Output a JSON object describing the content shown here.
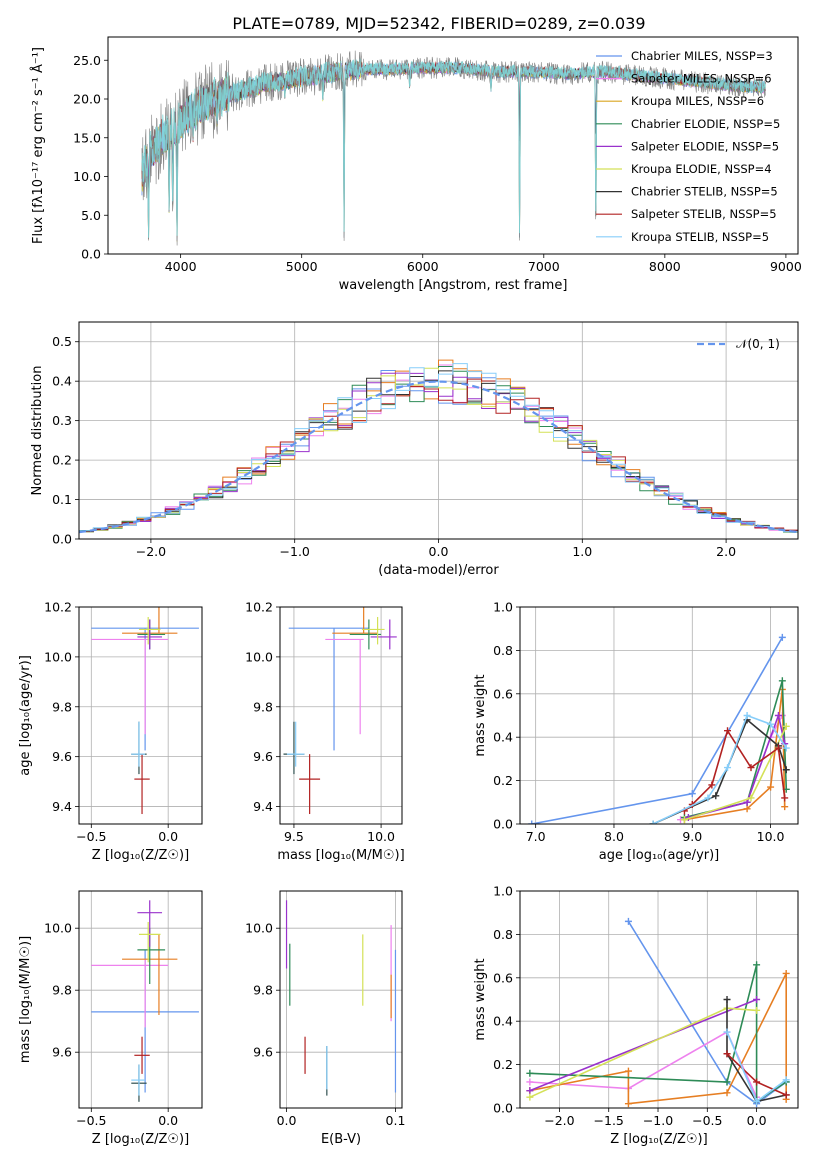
{
  "chart_data": [
    {
      "id": "spectrum",
      "type": "line",
      "title": "PLATE=0789, MJD=52342, FIBERID=0289, z=0.039",
      "xlabel": "wavelength [Angstrom, rest frame]",
      "ylabel": "Flux [fλ10⁻¹⁷ erg cm⁻² s⁻¹ Å⁻¹]",
      "xlim": [
        3400,
        9100
      ],
      "ylim": [
        0,
        28
      ],
      "xticks": [
        4000,
        5000,
        6000,
        7000,
        8000,
        9000
      ],
      "yticks": [
        0,
        5,
        10,
        15,
        20,
        25
      ],
      "grid": false,
      "legend_position": "top-right",
      "legend": [
        {
          "label": "Chabrier MILES, NSSP=3",
          "color": "#6495ed"
        },
        {
          "label": "Salpeter MILES, NSSP=6",
          "color": "#ee82ee"
        },
        {
          "label": "Kroupa MILES, NSSP=6",
          "color": "#daa520"
        },
        {
          "label": "Chabrier ELODIE, NSSP=5",
          "color": "#2e8b57"
        },
        {
          "label": "Salpeter ELODIE, NSSP=5",
          "color": "#9932cc"
        },
        {
          "label": "Kroupa ELODIE, NSSP=4",
          "color": "#d4e157"
        },
        {
          "label": "Chabrier STELIB, NSSP=5",
          "color": "#333333"
        },
        {
          "label": "Salpeter STELIB, NSSP=5",
          "color": "#b22222"
        },
        {
          "label": "Kroupa STELIB, NSSP=5",
          "color": "#87cefa"
        }
      ],
      "data_line": {
        "color": "#808080",
        "x_range": [
          3680,
          8830
        ]
      },
      "continuum": {
        "x": [
          3680,
          3750,
          3850,
          3950,
          4050,
          4200,
          4350,
          4500,
          4700,
          4900,
          5100,
          5300,
          5500,
          5700,
          6000,
          6300,
          6600,
          6900,
          7200,
          7500,
          7800,
          8100,
          8400,
          8700,
          8830
        ],
        "y": [
          10,
          13,
          15,
          16,
          18,
          19.5,
          20.5,
          21,
          22,
          22.5,
          23,
          23.5,
          23.8,
          23.8,
          24,
          24,
          23.5,
          23.5,
          23.2,
          23.5,
          23,
          22.5,
          22,
          21.5,
          21.5
        ]
      },
      "dips": [
        {
          "x": 3735,
          "y": 1.5
        },
        {
          "x": 3905,
          "y": 4.2
        },
        {
          "x": 3935,
          "y": 4.5
        },
        {
          "x": 3970,
          "y": 0
        },
        {
          "x": 4102,
          "y": 14
        },
        {
          "x": 4300,
          "y": 15.5
        },
        {
          "x": 4861,
          "y": 20
        },
        {
          "x": 5175,
          "y": 19
        },
        {
          "x": 5350,
          "y": 1.5
        },
        {
          "x": 5892,
          "y": 21
        },
        {
          "x": 6563,
          "y": 20.5
        },
        {
          "x": 6800,
          "y": 0
        },
        {
          "x": 7430,
          "y": 0
        }
      ]
    },
    {
      "id": "residuals",
      "type": "line",
      "xlabel": "(data-model)/error",
      "ylabel": "Normed distribution",
      "xlim": [
        -2.5,
        2.5
      ],
      "ylim": [
        0,
        0.55
      ],
      "xticks": [
        -2,
        -1,
        0,
        1,
        2
      ],
      "yticks": [
        0.0,
        0.1,
        0.2,
        0.3,
        0.4,
        0.5
      ],
      "grid": true,
      "legend_position": "top-right",
      "legend": [
        {
          "label": "𝒩(0, 1)",
          "color": "#6495ed"
        }
      ],
      "gaussian": {
        "mean": 0,
        "sigma": 1
      }
    },
    {
      "id": "age-vs-z",
      "type": "scatter",
      "xlabel": "Z [log₁₀(Z/Z☉)]",
      "ylabel": "age  [log₁₀(age/yr)]",
      "xlim": [
        -0.58,
        0.22
      ],
      "ylim": [
        9.33,
        10.2
      ],
      "xticks": [
        -0.5,
        0.0
      ],
      "yticks": [
        9.4,
        9.6,
        9.8,
        10.0,
        10.2
      ],
      "grid": true,
      "points": [
        {
          "x": -0.15,
          "xerr": [
            0.35,
            0.35
          ],
          "y": 10.115,
          "yerr": [
            0.49,
            0.0
          ],
          "color": "#6495ed"
        },
        {
          "x": -0.15,
          "xerr": [
            0.35,
            0.15
          ],
          "y": 10.07,
          "yerr": [
            0.38,
            0.0
          ],
          "color": "#ee82ee"
        },
        {
          "x": -0.06,
          "xerr": [
            0.24,
            0.12
          ],
          "y": 10.095,
          "yerr": [
            0.0,
            0.17
          ],
          "color": "#e67e22"
        },
        {
          "x": -0.12,
          "xerr": [
            0.08,
            0.1
          ],
          "y": 10.09,
          "yerr": [
            0.06,
            0.06
          ],
          "color": "#2e8b57"
        },
        {
          "x": -0.12,
          "xerr": [
            0.08,
            0.08
          ],
          "y": 10.08,
          "yerr": [
            0.05,
            0.07
          ],
          "color": "#9932cc"
        },
        {
          "x": -0.13,
          "xerr": [
            0.06,
            0.08
          ],
          "y": 10.11,
          "yerr": [
            0.06,
            0.05
          ],
          "color": "#d4e157"
        },
        {
          "x": -0.19,
          "xerr": [
            0.05,
            0.05
          ],
          "y": 9.61,
          "yerr": [
            0.08,
            0.13
          ],
          "color": "#2f4f4f"
        },
        {
          "x": -0.17,
          "xerr": [
            0.05,
            0.05
          ],
          "y": 9.51,
          "yerr": [
            0.14,
            0.1
          ],
          "color": "#b22222"
        },
        {
          "x": -0.19,
          "xerr": [
            0.05,
            0.04
          ],
          "y": 9.61,
          "yerr": [
            0.05,
            0.13
          ],
          "color": "#87cefa"
        }
      ]
    },
    {
      "id": "age-vs-mass",
      "type": "scatter",
      "xlabel": "mass [log₁₀(M/M☉)]",
      "ylabel": "",
      "xlim": [
        9.42,
        10.12
      ],
      "ylim": [
        9.33,
        10.2
      ],
      "xticks": [
        9.5,
        10.0
      ],
      "yticks": [
        9.4,
        9.6,
        9.8,
        10.0,
        10.2
      ],
      "grid": true,
      "points": [
        {
          "x": 9.73,
          "xerr": [
            0.26,
            0.2
          ],
          "y": 10.115,
          "yerr": [
            0.49,
            0.0
          ],
          "color": "#6495ed"
        },
        {
          "x": 9.88,
          "xerr": [
            0.2,
            0.02
          ],
          "y": 10.07,
          "yerr": [
            0.38,
            0.0
          ],
          "color": "#ee82ee"
        },
        {
          "x": 9.9,
          "xerr": [
            0.18,
            0.08
          ],
          "y": 10.095,
          "yerr": [
            0.0,
            0.17
          ],
          "color": "#e67e22"
        },
        {
          "x": 9.93,
          "xerr": [
            0.11,
            0.07
          ],
          "y": 10.09,
          "yerr": [
            0.06,
            0.06
          ],
          "color": "#2e8b57"
        },
        {
          "x": 10.05,
          "xerr": [
            0.11,
            0.04
          ],
          "y": 10.08,
          "yerr": [
            0.05,
            0.07
          ],
          "color": "#9932cc"
        },
        {
          "x": 9.98,
          "xerr": [
            0.09,
            0.04
          ],
          "y": 10.11,
          "yerr": [
            0.06,
            0.05
          ],
          "color": "#d4e157"
        },
        {
          "x": 9.5,
          "xerr": [
            0.06,
            0.06
          ],
          "y": 9.61,
          "yerr": [
            0.08,
            0.13
          ],
          "color": "#2f4f4f"
        },
        {
          "x": 9.59,
          "xerr": [
            0.06,
            0.06
          ],
          "y": 9.51,
          "yerr": [
            0.14,
            0.1
          ],
          "color": "#b22222"
        },
        {
          "x": 9.51,
          "xerr": [
            0.05,
            0.05
          ],
          "y": 9.61,
          "yerr": [
            0.05,
            0.13
          ],
          "color": "#87cefa"
        }
      ]
    },
    {
      "id": "massweight-vs-age",
      "type": "line",
      "xlabel": "age  [log₁₀(age/yr)]",
      "ylabel": "mass weight",
      "xlim": [
        6.8,
        10.35
      ],
      "ylim": [
        0,
        1.0
      ],
      "xticks": [
        7,
        8,
        9,
        10
      ],
      "yticks": [
        0.0,
        0.2,
        0.4,
        0.6,
        0.8,
        1.0
      ],
      "grid": true,
      "series": [
        {
          "color": "#6495ed",
          "x": [
            6.95,
            9.0,
            10.15
          ],
          "y": [
            0.0,
            0.14,
            0.86
          ]
        },
        {
          "color": "#ee82ee",
          "x": [
            8.85,
            9.7,
            10.0,
            10.15
          ],
          "y": [
            0.02,
            0.1,
            0.4,
            0.5
          ]
        },
        {
          "color": "#e67e22",
          "x": [
            8.9,
            9.7,
            10.0,
            10.15,
            10.18
          ],
          "y": [
            0.02,
            0.07,
            0.17,
            0.62,
            0.08
          ]
        },
        {
          "color": "#2e8b57",
          "x": [
            8.9,
            9.7,
            10.15,
            10.2
          ],
          "y": [
            0.03,
            0.1,
            0.66,
            0.16
          ]
        },
        {
          "color": "#9932cc",
          "x": [
            8.95,
            9.7,
            10.1,
            10.18
          ],
          "y": [
            0.03,
            0.1,
            0.5,
            0.37
          ]
        },
        {
          "color": "#d4e157",
          "x": [
            8.9,
            9.75,
            10.2
          ],
          "y": [
            0.02,
            0.12,
            0.45
          ]
        },
        {
          "color": "#333333",
          "x": [
            8.5,
            9.3,
            9.7,
            10.1,
            10.2
          ],
          "y": [
            0.0,
            0.13,
            0.48,
            0.36,
            0.25
          ]
        },
        {
          "color": "#b22222",
          "x": [
            8.9,
            9.0,
            9.25,
            9.45,
            9.75,
            10.1,
            10.18
          ],
          "y": [
            0.06,
            0.09,
            0.18,
            0.43,
            0.26,
            0.35,
            0.12
          ]
        },
        {
          "color": "#87cefa",
          "x": [
            8.5,
            9.2,
            9.45,
            9.7,
            10.0,
            10.2
          ],
          "y": [
            0.0,
            0.12,
            0.26,
            0.5,
            0.46,
            0.35
          ]
        }
      ]
    },
    {
      "id": "mass-vs-z",
      "type": "scatter",
      "xlabel": "Z [log₁₀(Z/Z☉)]",
      "ylabel": "mass [log₁₀(M/M☉)]",
      "xlim": [
        -0.58,
        0.22
      ],
      "ylim": [
        9.42,
        10.12
      ],
      "xticks": [
        -0.5,
        0.0
      ],
      "yticks": [
        9.6,
        9.8,
        10.0
      ],
      "grid": true,
      "points": [
        {
          "x": -0.15,
          "xerr": [
            0.35,
            0.35
          ],
          "y": 9.73,
          "yerr": [
            0.26,
            0.2
          ],
          "color": "#6495ed"
        },
        {
          "x": -0.15,
          "xerr": [
            0.35,
            0.15
          ],
          "y": 9.88,
          "yerr": [
            0.2,
            0.02
          ],
          "color": "#ee82ee"
        },
        {
          "x": -0.06,
          "xerr": [
            0.24,
            0.12
          ],
          "y": 9.9,
          "yerr": [
            0.18,
            0.08
          ],
          "color": "#e67e22"
        },
        {
          "x": -0.12,
          "xerr": [
            0.08,
            0.1
          ],
          "y": 9.93,
          "yerr": [
            0.11,
            0.07
          ],
          "color": "#2e8b57"
        },
        {
          "x": -0.12,
          "xerr": [
            0.08,
            0.08
          ],
          "y": 10.05,
          "yerr": [
            0.11,
            0.04
          ],
          "color": "#9932cc"
        },
        {
          "x": -0.13,
          "xerr": [
            0.06,
            0.08
          ],
          "y": 9.98,
          "yerr": [
            0.09,
            0.04
          ],
          "color": "#d4e157"
        },
        {
          "x": -0.19,
          "xerr": [
            0.05,
            0.05
          ],
          "y": 9.5,
          "yerr": [
            0.06,
            0.06
          ],
          "color": "#2f4f4f"
        },
        {
          "x": -0.17,
          "xerr": [
            0.05,
            0.05
          ],
          "y": 9.59,
          "yerr": [
            0.06,
            0.06
          ],
          "color": "#b22222"
        },
        {
          "x": -0.19,
          "xerr": [
            0.05,
            0.04
          ],
          "y": 9.51,
          "yerr": [
            0.05,
            0.05
          ],
          "color": "#87cefa"
        }
      ]
    },
    {
      "id": "mass-vs-ebv",
      "type": "scatter",
      "xlabel": "E(B-V)",
      "ylabel": "",
      "xlim": [
        -0.006,
        0.106
      ],
      "ylim": [
        9.42,
        10.12
      ],
      "xticks": [
        0.0,
        0.1
      ],
      "yticks": [
        9.6,
        9.8,
        10.0
      ],
      "grid": true,
      "points": [
        {
          "x": 0.1,
          "xerr": [
            0,
            0
          ],
          "y": 9.73,
          "yerr": [
            0.26,
            0.2
          ],
          "color": "#6495ed"
        },
        {
          "x": 0.096,
          "xerr": [
            0,
            0
          ],
          "y": 9.87,
          "yerr": [
            0.17,
            0.14
          ],
          "color": "#ee82ee"
        },
        {
          "x": 0.096,
          "xerr": [
            0,
            0
          ],
          "y": 9.85,
          "yerr": [
            0.14,
            0.0
          ],
          "color": "#e67e22"
        },
        {
          "x": 0.003,
          "xerr": [
            0,
            0
          ],
          "y": 9.85,
          "yerr": [
            0.1,
            0.1
          ],
          "color": "#2e8b57"
        },
        {
          "x": 0.0,
          "xerr": [
            0,
            0
          ],
          "y": 9.98,
          "yerr": [
            0.11,
            0.11
          ],
          "color": "#9932cc"
        },
        {
          "x": 0.07,
          "xerr": [
            0,
            0
          ],
          "y": 9.86,
          "yerr": [
            0.11,
            0.12
          ],
          "color": "#d4e157"
        },
        {
          "x": 0.037,
          "xerr": [
            0,
            0
          ],
          "y": 9.54,
          "yerr": [
            0.08,
            0.08
          ],
          "color": "#2f4f4f"
        },
        {
          "x": 0.017,
          "xerr": [
            0,
            0
          ],
          "y": 9.59,
          "yerr": [
            0.06,
            0.06
          ],
          "color": "#b22222"
        },
        {
          "x": 0.037,
          "xerr": [
            0,
            0
          ],
          "y": 9.55,
          "yerr": [
            0.07,
            0.07
          ],
          "color": "#87cefa"
        }
      ]
    },
    {
      "id": "massweight-vs-z",
      "type": "line",
      "xlabel": "Z [log₁₀(Z/Z☉)]",
      "ylabel": "mass weight",
      "xlim": [
        -2.4,
        0.42
      ],
      "ylim": [
        0,
        1.0
      ],
      "xticks": [
        -2.0,
        -1.5,
        -1.0,
        -0.5,
        0.0
      ],
      "yticks": [
        0.0,
        0.2,
        0.4,
        0.6,
        0.8,
        1.0
      ],
      "grid": true,
      "series": [
        {
          "color": "#6495ed",
          "x": [
            -1.3,
            -0.3,
            0.0,
            0.3
          ],
          "y": [
            0.86,
            0.12,
            0.02,
            0.12
          ]
        },
        {
          "color": "#ee82ee",
          "x": [
            -2.3,
            -1.3,
            -0.3,
            0.0
          ],
          "y": [
            0.12,
            0.09,
            0.35,
            0.05
          ]
        },
        {
          "color": "#e67e22",
          "x": [
            -2.3,
            -1.3,
            -1.3,
            -0.3,
            0.3,
            0.3
          ],
          "y": [
            0.08,
            0.17,
            0.02,
            0.07,
            0.62,
            0.04
          ]
        },
        {
          "color": "#2e8b57",
          "x": [
            -2.3,
            -0.3,
            0.0,
            0.0,
            0.3
          ],
          "y": [
            0.16,
            0.12,
            0.66,
            0.03,
            0.12
          ]
        },
        {
          "color": "#9932cc",
          "x": [
            -2.3,
            0.0
          ],
          "y": [
            0.08,
            0.5
          ]
        },
        {
          "color": "#d4e157",
          "x": [
            -2.3,
            -0.3,
            0.0
          ],
          "y": [
            0.05,
            0.46,
            0.45
          ]
        },
        {
          "color": "#333333",
          "x": [
            -0.3,
            -0.3,
            0.0,
            0.3
          ],
          "y": [
            0.5,
            0.25,
            0.03,
            0.06
          ]
        },
        {
          "color": "#b22222",
          "x": [
            -0.3,
            0.0,
            0.3
          ],
          "y": [
            0.25,
            0.12,
            0.06
          ]
        },
        {
          "color": "#87cefa",
          "x": [
            -0.3,
            0.0,
            0.3
          ],
          "y": [
            0.35,
            0.03,
            0.13
          ]
        }
      ]
    }
  ]
}
